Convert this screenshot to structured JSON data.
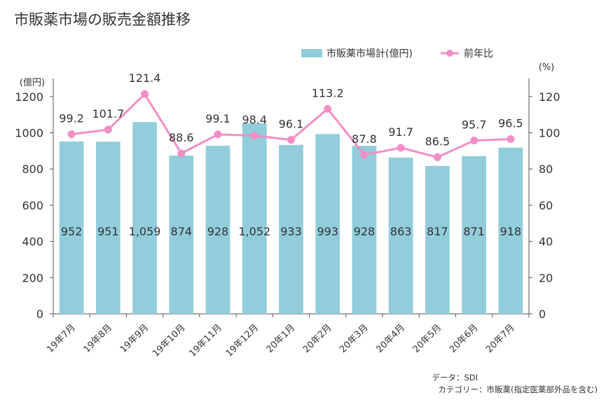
{
  "chart_data": {
    "type": "bar",
    "title": "市販薬市場の販売金額推移",
    "categories": [
      "19年7月",
      "19年8月",
      "19年9月",
      "19年10月",
      "19年11月",
      "19年12月",
      "20年1月",
      "20年2月",
      "20年3月",
      "20年4月",
      "20年5月",
      "20年6月",
      "20年7月"
    ],
    "series": [
      {
        "name": "市販薬市場計(億円)",
        "kind": "bar",
        "axis": "left",
        "values": [
          952,
          951,
          1059,
          874,
          928,
          1052,
          933,
          993,
          928,
          863,
          817,
          871,
          918
        ],
        "labels": [
          "952",
          "951",
          "1,059",
          "874",
          "928",
          "1,052",
          "933",
          "993",
          "928",
          "863",
          "817",
          "871",
          "918"
        ]
      },
      {
        "name": "前年比",
        "kind": "line",
        "axis": "right",
        "values": [
          99.2,
          101.7,
          121.4,
          88.6,
          99.1,
          98.4,
          96.1,
          113.2,
          87.8,
          91.7,
          86.5,
          95.7,
          96.5
        ],
        "labels": [
          "99.2",
          "101.7",
          "121.4",
          "88.6",
          "99.1",
          "98.4",
          "96.1",
          "113.2",
          "87.8",
          "91.7",
          "86.5",
          "95.7",
          "96.5"
        ]
      }
    ],
    "y_left": {
      "label": "(億円)",
      "lim": [
        0,
        1300
      ],
      "ticks": [
        0,
        200,
        400,
        600,
        800,
        1000,
        1200
      ]
    },
    "y_right": {
      "label": "(%)",
      "lim": [
        0,
        130
      ],
      "ticks": [
        0,
        20,
        40,
        60,
        80,
        100,
        120
      ]
    },
    "legend_position": "top-right",
    "grid": false,
    "colors": {
      "bar": "#92cddc",
      "line": "#f28fc6",
      "text": "#333333",
      "axis": "#555555"
    }
  },
  "source": {
    "data_line": "データ：SDI",
    "category_line": "カテゴリー：市販薬(指定医薬部外品を含む)"
  }
}
